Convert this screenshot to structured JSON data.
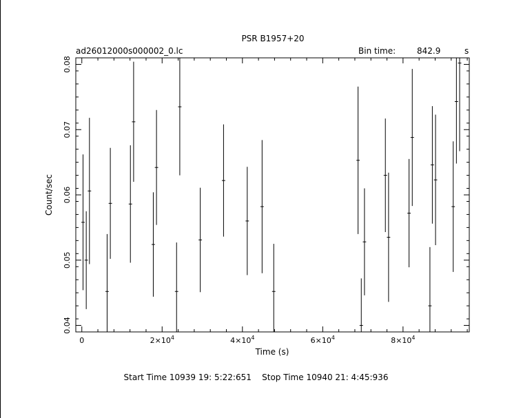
{
  "chart_data": {
    "type": "scatter",
    "title": "PSR B1957+20",
    "file_label": "ad26012000s000002_0.lc",
    "bin_time_label": "Bin time:",
    "bin_time_value": "842.9",
    "bin_time_unit": "s",
    "xlabel": "Time (s)",
    "ylabel": "Count/sec",
    "xlim": [
      -1500,
      96500
    ],
    "ylim": [
      0.039,
      0.081
    ],
    "x_ticks": [
      0,
      20000,
      40000,
      60000,
      80000
    ],
    "x_tick_labels": [
      {
        "mant": "0",
        "exp": ""
      },
      {
        "mant": "2×10",
        "exp": "4"
      },
      {
        "mant": "4×10",
        "exp": "4"
      },
      {
        "mant": "6×10",
        "exp": "4"
      },
      {
        "mant": "8×10",
        "exp": "4"
      }
    ],
    "y_ticks": [
      0.04,
      0.05,
      0.06,
      0.07,
      0.08
    ],
    "y_tick_labels": [
      "0.04",
      "0.05",
      "0.06",
      "0.07",
      "0.08"
    ],
    "bin_width": 843,
    "points": [
      {
        "x": 300,
        "y": 0.0558,
        "err": 0.0104
      },
      {
        "x": 1100,
        "y": 0.05,
        "err": 0.0075
      },
      {
        "x": 1900,
        "y": 0.0606,
        "err": 0.0112
      },
      {
        "x": 6300,
        "y": 0.0452,
        "err": 0.0088
      },
      {
        "x": 7100,
        "y": 0.0587,
        "err": 0.0085
      },
      {
        "x": 12100,
        "y": 0.0586,
        "err": 0.009
      },
      {
        "x": 12900,
        "y": 0.0712,
        "err": 0.0092
      },
      {
        "x": 17800,
        "y": 0.0524,
        "err": 0.008
      },
      {
        "x": 18600,
        "y": 0.0642,
        "err": 0.0088
      },
      {
        "x": 23600,
        "y": 0.0452,
        "err": 0.0075
      },
      {
        "x": 24400,
        "y": 0.0735,
        "err": 0.0105
      },
      {
        "x": 29500,
        "y": 0.0531,
        "err": 0.008
      },
      {
        "x": 35300,
        "y": 0.0622,
        "err": 0.0086
      },
      {
        "x": 41200,
        "y": 0.056,
        "err": 0.0083
      },
      {
        "x": 44900,
        "y": 0.0582,
        "err": 0.0102
      },
      {
        "x": 47800,
        "y": 0.0452,
        "err": 0.0073
      },
      {
        "x": 68800,
        "y": 0.0653,
        "err": 0.0113
      },
      {
        "x": 69600,
        "y": 0.04,
        "err": 0.0072
      },
      {
        "x": 70400,
        "y": 0.0528,
        "err": 0.0082
      },
      {
        "x": 75600,
        "y": 0.063,
        "err": 0.0087
      },
      {
        "x": 76400,
        "y": 0.0535,
        "err": 0.0099
      },
      {
        "x": 81500,
        "y": 0.0572,
        "err": 0.0083
      },
      {
        "x": 82300,
        "y": 0.0688,
        "err": 0.0105
      },
      {
        "x": 86700,
        "y": 0.043,
        "err": 0.009
      },
      {
        "x": 87300,
        "y": 0.0646,
        "err": 0.009
      },
      {
        "x": 88100,
        "y": 0.0623,
        "err": 0.01
      },
      {
        "x": 92500,
        "y": 0.0582,
        "err": 0.01
      },
      {
        "x": 93300,
        "y": 0.0743,
        "err": 0.0095
      },
      {
        "x": 94100,
        "y": 0.0802,
        "err": 0.0135
      }
    ],
    "grid": false,
    "legend": "none"
  },
  "footer": {
    "start_label": "Start Time",
    "start_value": "10939 19: 5:22:651",
    "stop_label": "Stop Time",
    "stop_value": "10940 21: 4:45:936"
  }
}
